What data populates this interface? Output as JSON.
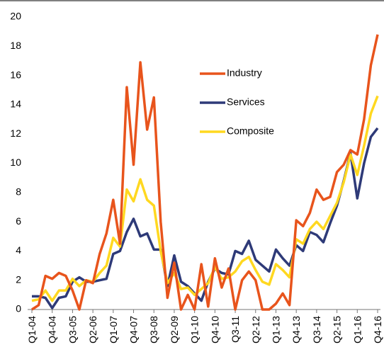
{
  "chart_data": {
    "type": "line",
    "categories": [
      "Q1-04",
      null,
      null,
      "Q4-04",
      null,
      null,
      "Q3-05",
      null,
      null,
      "Q2-06",
      null,
      null,
      "Q1-07",
      null,
      null,
      "Q4-07",
      null,
      null,
      "Q3-08",
      null,
      null,
      "Q2-09",
      null,
      null,
      "Q1-10",
      null,
      null,
      "Q4-10",
      null,
      null,
      "Q3-11",
      null,
      null,
      "Q2-12",
      null,
      null,
      "Q1-13",
      null,
      null,
      "Q4-13",
      null,
      null,
      "Q3-14",
      null,
      null,
      "Q2-15",
      null,
      null,
      "Q1-16",
      null,
      null,
      "Q4-16"
    ],
    "series": [
      {
        "name": "Industry",
        "color": "#e8541c",
        "values": [
          0,
          0.3,
          2.3,
          2.1,
          2.5,
          2.3,
          1.3,
          0,
          2,
          1.8,
          3.8,
          5.2,
          7.5,
          4.5,
          15.2,
          9.9,
          16.9,
          12.3,
          14.5,
          6,
          0.8,
          3.2,
          0,
          1,
          0,
          3.1,
          0.2,
          3.5,
          1.5,
          2.8,
          0,
          2,
          2.6,
          2,
          0,
          0,
          0.4,
          1.1,
          0.3,
          6.1,
          5.7,
          6.6,
          8.2,
          7.5,
          7.7,
          9.4,
          9.9,
          10.9,
          10.6,
          13,
          16.7,
          18.8
        ]
      },
      {
        "name": "Services",
        "color": "#2e3a78",
        "values": [
          0.9,
          0.9,
          0.8,
          0.1,
          0.8,
          0.9,
          1.9,
          2.2,
          1.9,
          1.9,
          2,
          2.1,
          3.8,
          4,
          5.3,
          6.2,
          5,
          5.2,
          4.1,
          4.1,
          1.6,
          3.7,
          1.9,
          1.6,
          1.1,
          0.6,
          1.9,
          2.8,
          2.5,
          2.4,
          4,
          3.8,
          4.7,
          3.4,
          3,
          2.6,
          4.1,
          3.5,
          3,
          4.4,
          4,
          5.3,
          5.1,
          4.6,
          5.9,
          7.1,
          8.8,
          10.7,
          7.6,
          10,
          11.8,
          12.4
        ]
      },
      {
        "name": "Composite",
        "color": "#ffd820",
        "values": [
          0.6,
          0.7,
          1.3,
          0.6,
          1.3,
          1.3,
          2.1,
          1.6,
          2,
          1.9,
          2.5,
          3,
          4.9,
          4.3,
          8.2,
          7.4,
          8.9,
          7.5,
          7.1,
          4,
          1.8,
          2.5,
          1.4,
          1.5,
          1,
          1.4,
          1.8,
          2.9,
          2.1,
          2.2,
          2.6,
          3.3,
          3.6,
          2.7,
          1.9,
          1.7,
          3.1,
          2.7,
          2.2,
          4.8,
          4.5,
          5.5,
          6,
          5.5,
          6.4,
          7.3,
          8.7,
          10.6,
          9.2,
          11.2,
          13.4,
          14.6
        ]
      }
    ],
    "ylim": [
      0,
      20
    ],
    "yticks": [
      0,
      2,
      4,
      6,
      8,
      10,
      12,
      14,
      16,
      18,
      20
    ]
  }
}
